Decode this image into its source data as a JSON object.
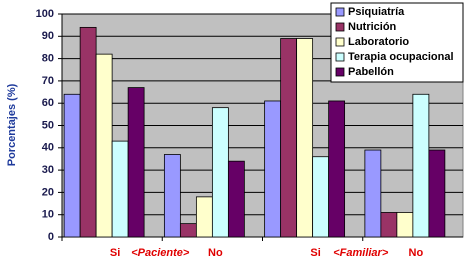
{
  "chart_data": {
    "type": "bar",
    "y_label": "Porcentajes (%)",
    "categories": [
      "Si",
      "No",
      "Si",
      "No"
    ],
    "group_labels": [
      "<Paciente>",
      "<Familiar>"
    ],
    "series": [
      {
        "name": "Psiquiatría",
        "color": "#9999ff",
        "values": [
          64,
          37,
          61,
          39
        ]
      },
      {
        "name": "Nutrición",
        "color": "#993366",
        "values": [
          94,
          6,
          89,
          11
        ]
      },
      {
        "name": "Laboratorio",
        "color": "#ffffcc",
        "values": [
          82,
          18,
          89,
          11
        ]
      },
      {
        "name": "Terapia ocupacional",
        "color": "#ccffff",
        "values": [
          43,
          58,
          36,
          64
        ]
      },
      {
        "name": "Pabellón",
        "color": "#660066",
        "values": [
          67,
          34,
          61,
          39
        ]
      }
    ],
    "ylim": [
      0,
      100
    ],
    "yticks": [
      0,
      10,
      20,
      30,
      40,
      50,
      60,
      70,
      80,
      90,
      100
    ],
    "grid": true,
    "legend": "top-right",
    "background": "#c0c0c0"
  }
}
